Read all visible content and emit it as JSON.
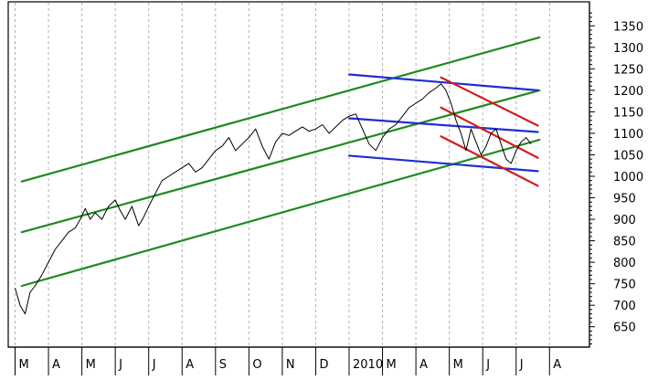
{
  "chart_data": {
    "type": "line",
    "title": "",
    "xlabel": "",
    "ylabel": "",
    "ylim": [
      600,
      1380
    ],
    "x_tick_labels": [
      "M",
      "A",
      "M",
      "J",
      "J",
      "A",
      "S",
      "O",
      "N",
      "D",
      "2010",
      "M",
      "A",
      "M",
      "J",
      "J",
      "A"
    ],
    "y_ticks": [
      650,
      700,
      750,
      800,
      850,
      900,
      950,
      1000,
      1050,
      1100,
      1150,
      1200,
      1250,
      1300,
      1350
    ],
    "grid": "vertical-dotted",
    "price_series": {
      "name": "",
      "color": "#000000",
      "points": [
        [
          0.0,
          740
        ],
        [
          0.15,
          700
        ],
        [
          0.3,
          680
        ],
        [
          0.45,
          730
        ],
        [
          0.6,
          745
        ],
        [
          0.8,
          770
        ],
        [
          1.0,
          800
        ],
        [
          1.2,
          830
        ],
        [
          1.4,
          850
        ],
        [
          1.6,
          870
        ],
        [
          1.8,
          880
        ],
        [
          1.95,
          900
        ],
        [
          2.1,
          925
        ],
        [
          2.25,
          900
        ],
        [
          2.4,
          915
        ],
        [
          2.6,
          900
        ],
        [
          2.8,
          930
        ],
        [
          3.0,
          945
        ],
        [
          3.15,
          920
        ],
        [
          3.3,
          900
        ],
        [
          3.5,
          930
        ],
        [
          3.7,
          885
        ],
        [
          3.85,
          905
        ],
        [
          4.0,
          930
        ],
        [
          4.2,
          960
        ],
        [
          4.4,
          990
        ],
        [
          4.6,
          1000
        ],
        [
          4.8,
          1010
        ],
        [
          5.0,
          1020
        ],
        [
          5.2,
          1030
        ],
        [
          5.4,
          1010
        ],
        [
          5.6,
          1020
        ],
        [
          5.8,
          1040
        ],
        [
          6.0,
          1060
        ],
        [
          6.2,
          1070
        ],
        [
          6.4,
          1090
        ],
        [
          6.6,
          1060
        ],
        [
          6.8,
          1075
        ],
        [
          7.0,
          1090
        ],
        [
          7.2,
          1110
        ],
        [
          7.4,
          1070
        ],
        [
          7.6,
          1040
        ],
        [
          7.8,
          1080
        ],
        [
          8.0,
          1100
        ],
        [
          8.2,
          1095
        ],
        [
          8.4,
          1105
        ],
        [
          8.6,
          1115
        ],
        [
          8.8,
          1105
        ],
        [
          9.0,
          1110
        ],
        [
          9.2,
          1120
        ],
        [
          9.4,
          1100
        ],
        [
          9.6,
          1115
        ],
        [
          9.8,
          1130
        ],
        [
          10.0,
          1140
        ],
        [
          10.2,
          1145
        ],
        [
          10.4,
          1110
        ],
        [
          10.6,
          1075
        ],
        [
          10.8,
          1060
        ],
        [
          11.0,
          1090
        ],
        [
          11.2,
          1110
        ],
        [
          11.4,
          1120
        ],
        [
          11.6,
          1140
        ],
        [
          11.8,
          1160
        ],
        [
          12.0,
          1170
        ],
        [
          12.2,
          1180
        ],
        [
          12.4,
          1195
        ],
        [
          12.6,
          1205
        ],
        [
          12.75,
          1215
        ],
        [
          12.9,
          1200
        ],
        [
          13.05,
          1170
        ],
        [
          13.2,
          1130
        ],
        [
          13.35,
          1100
        ],
        [
          13.5,
          1060
        ],
        [
          13.65,
          1110
        ],
        [
          13.8,
          1080
        ],
        [
          13.95,
          1050
        ],
        [
          14.1,
          1070
        ],
        [
          14.25,
          1100
        ],
        [
          14.4,
          1110
        ],
        [
          14.55,
          1075
        ],
        [
          14.7,
          1040
        ],
        [
          14.85,
          1030
        ],
        [
          15.0,
          1060
        ],
        [
          15.15,
          1080
        ],
        [
          15.3,
          1090
        ],
        [
          15.45,
          1075
        ]
      ]
    },
    "trendlines": [
      {
        "color": "#1e8a1e",
        "from": [
          0.2,
          988
        ],
        "to": [
          15.7,
          1323
        ]
      },
      {
        "color": "#1e8a1e",
        "from": [
          0.2,
          870
        ],
        "to": [
          15.7,
          1200
        ]
      },
      {
        "color": "#1e8a1e",
        "from": [
          0.2,
          745
        ],
        "to": [
          15.7,
          1085
        ]
      },
      {
        "color": "#1f2fcf",
        "from": [
          10.0,
          1237
        ],
        "to": [
          15.65,
          1200
        ]
      },
      {
        "color": "#1f2fcf",
        "from": [
          10.0,
          1135
        ],
        "to": [
          15.65,
          1103
        ]
      },
      {
        "color": "#1f2fcf",
        "from": [
          10.0,
          1048
        ],
        "to": [
          15.65,
          1012
        ]
      },
      {
        "color": "#d41c1c",
        "from": [
          12.75,
          1230
        ],
        "to": [
          15.65,
          1118
        ]
      },
      {
        "color": "#d41c1c",
        "from": [
          12.75,
          1160
        ],
        "to": [
          15.65,
          1043
        ]
      },
      {
        "color": "#d41c1c",
        "from": [
          12.75,
          1093
        ],
        "to": [
          15.65,
          978
        ]
      }
    ]
  }
}
